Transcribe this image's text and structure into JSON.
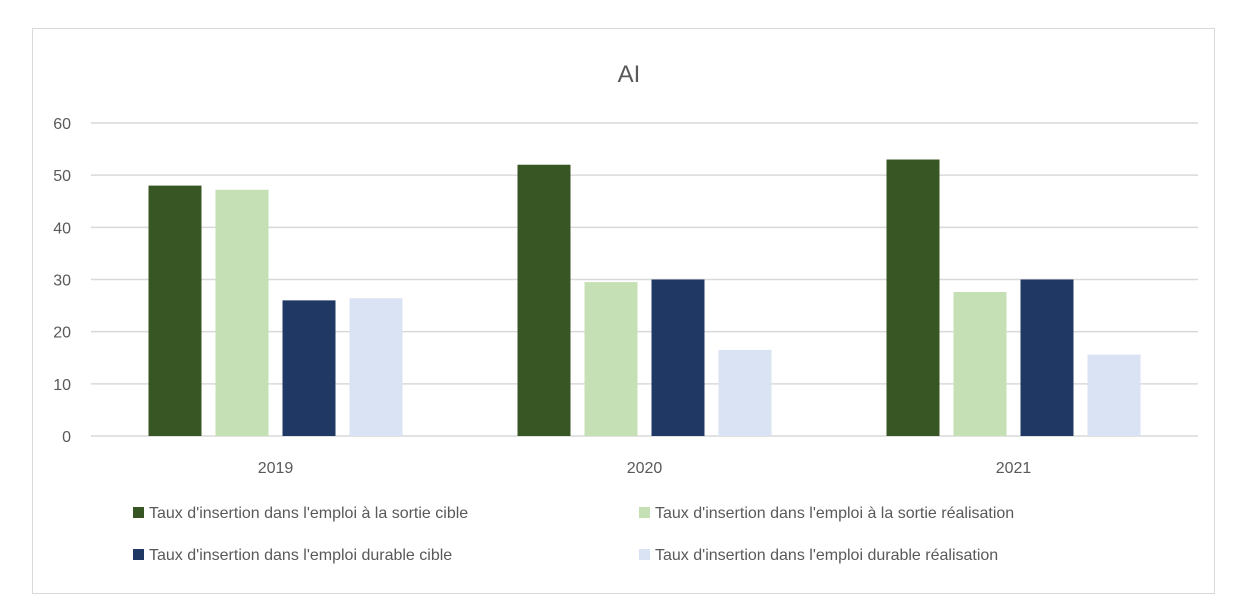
{
  "chart_data": {
    "type": "bar",
    "title": "AI",
    "xlabel": "",
    "ylabel": "",
    "categories": [
      "2019",
      "2020",
      "2021"
    ],
    "ylim": [
      0,
      60
    ],
    "yticks": [
      0,
      10,
      20,
      30,
      40,
      50,
      60
    ],
    "grid": true,
    "legend_position": "bottom",
    "series": [
      {
        "name": "Taux d'insertion dans l'emploi à la sortie cible",
        "color": "#375623",
        "values": [
          48,
          52,
          53
        ]
      },
      {
        "name": "Taux d'insertion dans l'emploi à la sortie réalisation",
        "color": "#c5e0b4",
        "values": [
          47.2,
          29.5,
          27.6
        ]
      },
      {
        "name": "Taux d'insertion dans l'emploi durable cible",
        "color": "#1f3864",
        "values": [
          26,
          30,
          30
        ]
      },
      {
        "name": "Taux d'insertion dans l'emploi durable réalisation",
        "color": "#dae3f3",
        "values": [
          26.4,
          16.5,
          15.6
        ]
      }
    ],
    "gridline_color": "#d9d9d9",
    "text_color": "#595959"
  }
}
